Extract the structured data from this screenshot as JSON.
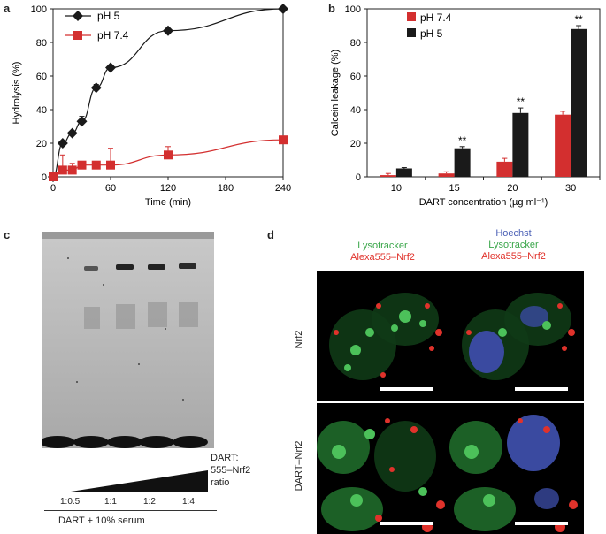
{
  "panels": {
    "a": "a",
    "b": "b",
    "c": "c",
    "d": "d"
  },
  "chart_data": [
    {
      "type": "line",
      "xlabel": "Time (min)",
      "ylabel": "Hydrolysis (%)",
      "xlim": [
        0,
        240
      ],
      "ylim": [
        0,
        100
      ],
      "xticks": [
        "0",
        "60",
        "120",
        "180",
        "240"
      ],
      "yticks": [
        "0",
        "20",
        "40",
        "60",
        "80",
        "100"
      ],
      "legend_position": "top-left",
      "series": [
        {
          "name": "pH 5",
          "color": "#1a1a1a",
          "marker": "diamond",
          "x": [
            0,
            10,
            20,
            30,
            45,
            60,
            120,
            240
          ],
          "y": [
            0,
            20,
            26,
            33,
            53,
            65,
            87,
            100
          ],
          "err": [
            0,
            0,
            0,
            3,
            2,
            0,
            0,
            0
          ]
        },
        {
          "name": "pH 7.4",
          "color": "#d32f2f",
          "marker": "square",
          "x": [
            0,
            10,
            20,
            30,
            45,
            60,
            120,
            240
          ],
          "y": [
            0,
            4,
            4,
            7,
            7,
            7,
            13,
            22
          ],
          "err": [
            0,
            9,
            4,
            2,
            2,
            10,
            5,
            0
          ]
        }
      ]
    },
    {
      "type": "bar",
      "xlabel": "DART concentration (µg ml⁻¹)",
      "ylabel": "Calcein leakage (%)",
      "ylim": [
        0,
        100
      ],
      "yticks": [
        "0",
        "20",
        "40",
        "60",
        "80",
        "100"
      ],
      "categories": [
        "10",
        "15",
        "20",
        "30"
      ],
      "legend_position": "top-left",
      "series": [
        {
          "name": "pH 7.4",
          "color": "#d32f2f",
          "values": [
            1,
            2,
            9,
            37
          ],
          "err": [
            1,
            1,
            2,
            2
          ]
        },
        {
          "name": "pH 5",
          "color": "#1a1a1a",
          "values": [
            5,
            17,
            38,
            88
          ],
          "err": [
            0.5,
            1,
            3,
            2
          ]
        }
      ],
      "annotations": [
        {
          "category": "15",
          "text": "**"
        },
        {
          "category": "20",
          "text": "**"
        },
        {
          "category": "30",
          "text": "**"
        }
      ]
    }
  ],
  "gel": {
    "ratio_title_line1": "DART:",
    "ratio_title_line2": "555–Nrf2",
    "ratio_title_line3": "ratio",
    "lanes": [
      "1:0.5",
      "1:1",
      "1:2",
      "1:4"
    ],
    "footer": "DART + 10% serum"
  },
  "microscopy": {
    "col1_labels": [
      "Lysotracker",
      "Alexa555–Nrf2"
    ],
    "col2_labels": [
      "Hoechst",
      "Lysotracker",
      "Alexa555–Nrf2"
    ],
    "row_labels": [
      "Nrf2",
      "DART–Nrf2"
    ],
    "colors": {
      "green": "#3aa64a",
      "red": "#e0322b",
      "blue": "#4a5fb5"
    }
  }
}
